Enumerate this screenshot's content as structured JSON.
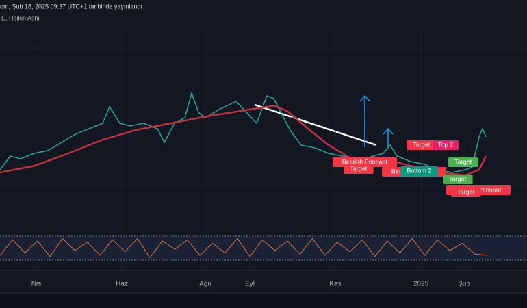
{
  "header": {
    "title": "om, Şub 18, 2025 09:37 UTC+1 tarihinde yayınlandı",
    "indicator": "E, Heikin Ashi"
  },
  "chart_data": {
    "type": "line",
    "xlim": [
      0,
      154
    ],
    "ylim": [
      0,
      300
    ],
    "xticks": [
      {
        "value": 10.6,
        "label": "Nis"
      },
      {
        "value": 35.6,
        "label": "Haz"
      },
      {
        "value": 60,
        "label": "Ağu"
      },
      {
        "value": 73,
        "label": "Eyl"
      },
      {
        "value": 98,
        "label": "Kas"
      },
      {
        "value": 123,
        "label": "2025"
      },
      {
        "value": 135.6,
        "label": "Şub"
      }
    ],
    "series": [
      {
        "name": "price",
        "color": "#26a69a",
        "x": [
          0,
          3,
          6,
          10,
          14,
          18,
          22,
          26,
          30,
          32,
          35,
          38,
          42,
          46,
          48,
          51,
          54,
          56,
          58,
          60,
          64,
          69,
          72,
          75,
          78,
          80,
          82,
          85,
          88,
          92,
          96,
          100,
          104,
          108,
          112,
          114,
          116,
          120,
          124,
          128,
          132,
          136,
          138,
          140,
          141,
          142
        ],
        "values": [
          65,
          90,
          85,
          95,
          100,
          115,
          130,
          140,
          150,
          180,
          150,
          145,
          150,
          140,
          115,
          150,
          160,
          205,
          170,
          160,
          175,
          190,
          170,
          150,
          200,
          195,
          170,
          135,
          110,
          105,
          95,
          90,
          85,
          88,
          95,
          110,
          90,
          80,
          75,
          65,
          60,
          65,
          70,
          125,
          140,
          125
        ]
      },
      {
        "name": "moving average",
        "color": "#c2313f",
        "x": [
          0,
          10,
          20,
          30,
          40,
          50,
          60,
          70,
          80,
          84,
          90,
          96,
          102,
          108,
          114,
          120,
          128,
          136,
          140,
          142
        ],
        "values": [
          60,
          72,
          95,
          120,
          138,
          150,
          162,
          172,
          182,
          172,
          140,
          110,
          88,
          82,
          82,
          72,
          60,
          55,
          65,
          90
        ]
      }
    ],
    "oscillator": {
      "color": "#e0733a",
      "ylim": [
        0,
        100
      ],
      "values": [
        20,
        85,
        30,
        80,
        15,
        90,
        40,
        75,
        20,
        85,
        35,
        90,
        10,
        80,
        45,
        85,
        20,
        70,
        30,
        90,
        15,
        85,
        40,
        80,
        25,
        90,
        20,
        75,
        35,
        85,
        15,
        80,
        30,
        90,
        20,
        85,
        40,
        70,
        25,
        20
      ]
    },
    "annotations": [
      {
        "label": "Bearish Pennant",
        "color": "#f23645"
      },
      {
        "label": "Target",
        "color": "#f23645"
      },
      {
        "label": "Target",
        "color": "#f23645"
      },
      {
        "label": "Top 2",
        "color": "#e91e63"
      },
      {
        "label": "Bearish Pennant",
        "color": "#f23645"
      },
      {
        "label": "Bottom 2",
        "color": "#089981"
      },
      {
        "label": "Target",
        "color": "#4caf50"
      },
      {
        "label": "Target",
        "color": "#4caf50"
      },
      {
        "label": "Bearish Pennant",
        "color": "#f23645"
      },
      {
        "label": "Target",
        "color": "#f23645"
      }
    ]
  }
}
